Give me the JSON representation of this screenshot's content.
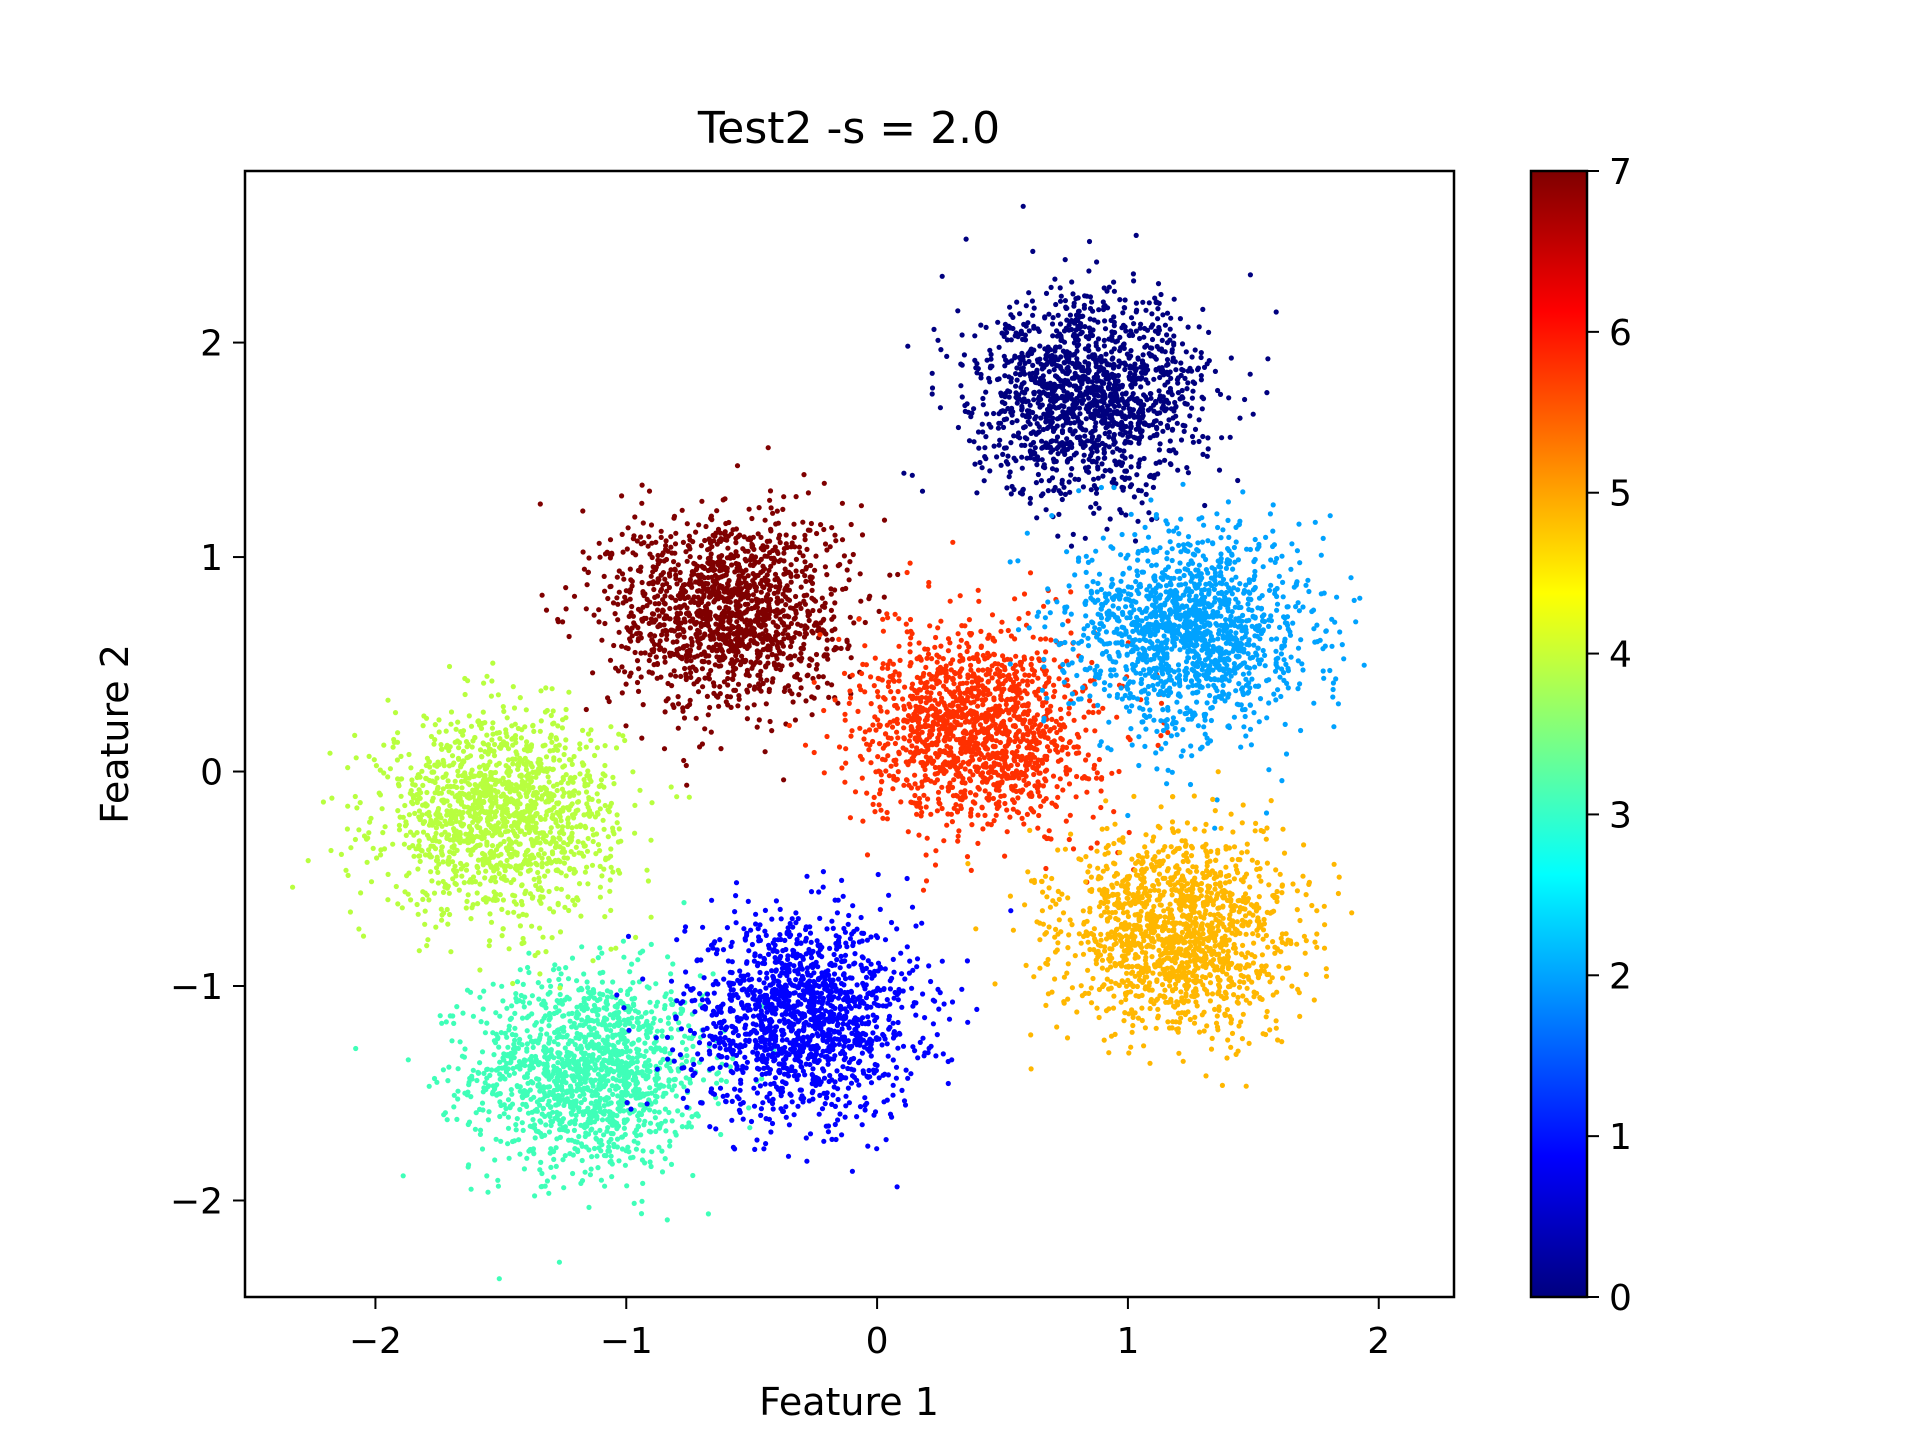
{
  "chart_data": {
    "type": "scatter",
    "title": "Test2 -s = 2.0",
    "xlabel": "Feature 1",
    "ylabel": "Feature 2",
    "xlim": [
      -2.52,
      2.3
    ],
    "ylim": [
      -2.45,
      2.8
    ],
    "xticks": [
      {
        "value": -2,
        "label": "−2"
      },
      {
        "value": -1,
        "label": "−1"
      },
      {
        "value": 0,
        "label": "0"
      },
      {
        "value": 1,
        "label": "1"
      },
      {
        "value": 2,
        "label": "2"
      }
    ],
    "yticks": [
      {
        "value": -2,
        "label": "−2"
      },
      {
        "value": -1,
        "label": "−1"
      },
      {
        "value": 0,
        "label": "0"
      },
      {
        "value": 1,
        "label": "1"
      },
      {
        "value": 2,
        "label": "2"
      }
    ],
    "grid": false,
    "colormap": "jet",
    "colorbar": {
      "range": [
        0,
        7
      ],
      "ticks": [
        {
          "value": 0,
          "label": "0"
        },
        {
          "value": 1,
          "label": "1"
        },
        {
          "value": 2,
          "label": "2"
        },
        {
          "value": 3,
          "label": "3"
        },
        {
          "value": 4,
          "label": "4"
        },
        {
          "value": 5,
          "label": "5"
        },
        {
          "value": 6,
          "label": "6"
        },
        {
          "value": 7,
          "label": "7"
        }
      ],
      "stops": [
        "#00007f",
        "#0000ff",
        "#007fff",
        "#00ffff",
        "#7fff7f",
        "#ffff00",
        "#ff7f00",
        "#ff0000",
        "#7f0000"
      ]
    },
    "clusters": [
      {
        "label_value": 0,
        "color": "#00007f",
        "center": [
          0.85,
          1.75
        ],
        "spread": 0.23
      },
      {
        "label_value": 1,
        "color": "#0000ff",
        "center": [
          -0.3,
          -1.15
        ],
        "spread": 0.23
      },
      {
        "label_value": 2,
        "color": "#00a2ff",
        "center": [
          1.25,
          0.65
        ],
        "spread": 0.23
      },
      {
        "label_value": 3,
        "color": "#3fffb8",
        "center": [
          -1.15,
          -1.4
        ],
        "spread": 0.23
      },
      {
        "label_value": 4,
        "color": "#b8ff3f",
        "center": [
          -1.5,
          -0.2
        ],
        "spread": 0.23
      },
      {
        "label_value": 5,
        "color": "#ffb700",
        "center": [
          1.2,
          -0.75
        ],
        "spread": 0.23
      },
      {
        "label_value": 6,
        "color": "#ff3000",
        "center": [
          0.4,
          0.2
        ],
        "spread": 0.23
      },
      {
        "label_value": 7,
        "color": "#7f0000",
        "center": [
          -0.6,
          0.75
        ],
        "spread": 0.23
      }
    ]
  }
}
